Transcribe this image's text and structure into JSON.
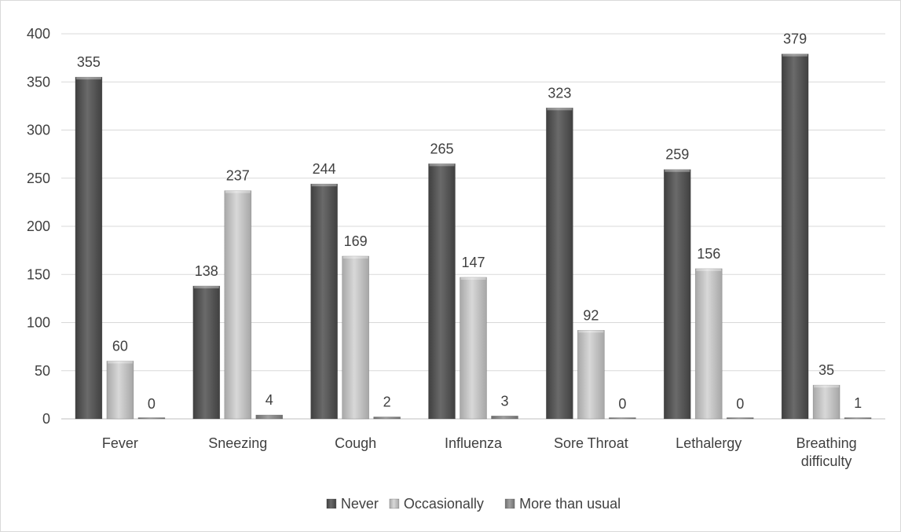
{
  "chart_data": {
    "type": "bar",
    "title": "",
    "xlabel": "",
    "ylabel": "",
    "categories": [
      [
        "Fever"
      ],
      [
        "Sneezing"
      ],
      [
        "Cough"
      ],
      [
        "Influenza"
      ],
      [
        "Sore Throat"
      ],
      [
        "Lethalergy"
      ],
      [
        "Breathing",
        "difficulty"
      ]
    ],
    "series": [
      {
        "name": "Never",
        "values": [
          355,
          138,
          244,
          265,
          323,
          259,
          379
        ]
      },
      {
        "name": "Occasionally",
        "values": [
          60,
          237,
          169,
          147,
          92,
          156,
          35
        ]
      },
      {
        "name": "More than usual",
        "values": [
          0,
          4,
          2,
          3,
          0,
          0,
          1
        ]
      }
    ],
    "ylim": [
      0,
      400
    ],
    "yticks": [
      0,
      50,
      100,
      150,
      200,
      250,
      300,
      350,
      400
    ],
    "grid": true,
    "legend_position": "bottom",
    "colors": {
      "Never": "#5a5a5a",
      "Occasionally": "#c2c2c2",
      "More than usual": "#8c8c8c",
      "grid": "#d9d9d9",
      "axis": "#bfbfbf",
      "text": "#404040",
      "border": "#d9d9d9"
    }
  }
}
